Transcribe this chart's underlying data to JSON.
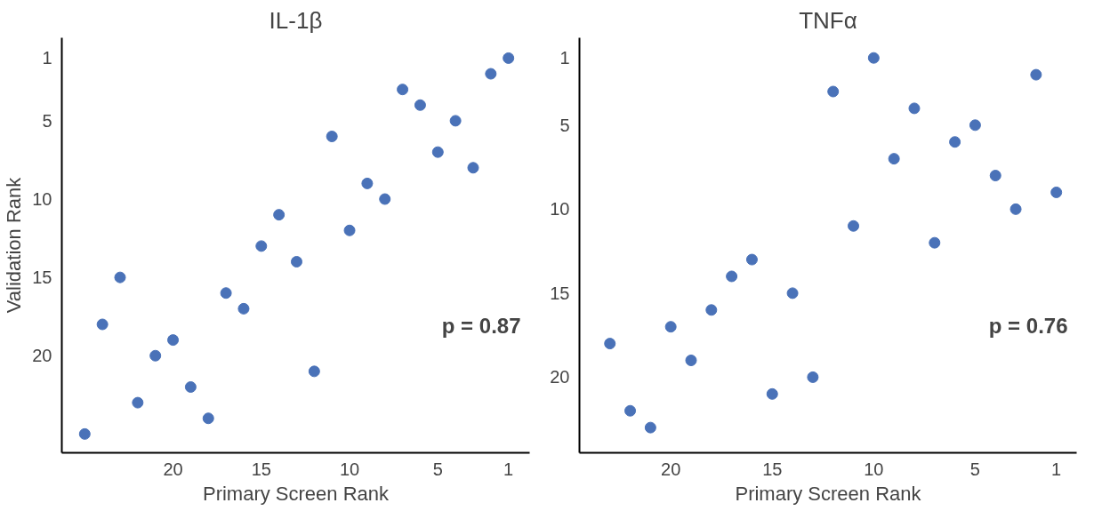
{
  "chart_data": [
    {
      "type": "scatter",
      "title": "IL-1β",
      "xlabel": "Primary Screen Rank",
      "ylabel": "Validation Rank",
      "marker": "circle",
      "grid": false,
      "x": [
        25,
        24,
        23,
        22,
        21,
        20,
        19,
        18,
        17,
        16,
        15,
        14,
        13,
        12,
        11,
        10,
        9,
        8,
        7,
        6,
        5,
        4,
        3,
        2,
        1
      ],
      "series": [
        {
          "color": "#4a72b8",
          "values": [
            25,
            18,
            15,
            23,
            20,
            19,
            22,
            24,
            16,
            17,
            13,
            11,
            14,
            21,
            6,
            12,
            9,
            10,
            3,
            4,
            7,
            5,
            8,
            2,
            1
          ]
        }
      ],
      "xlim": [
        26.3,
        -0.2
      ],
      "ylim": [
        26.2,
        -0.3
      ],
      "xticks": [
        20,
        15,
        10,
        5,
        1
      ],
      "yticks": [
        1,
        5,
        10,
        15,
        20
      ],
      "annotations": [
        "p = 0.87"
      ]
    },
    {
      "type": "scatter",
      "title": "TNFα",
      "xlabel": "Primary Screen Rank",
      "marker": "circle",
      "grid": false,
      "x": [
        23,
        22,
        21,
        20,
        19,
        18,
        17,
        16,
        15,
        14,
        13,
        12,
        11,
        10,
        9,
        8,
        7,
        6,
        5,
        4,
        3,
        2,
        1
      ],
      "series": [
        {
          "color": "#4a72b8",
          "values": [
            18,
            22,
            23,
            17,
            19,
            16,
            14,
            13,
            21,
            15,
            20,
            3,
            11,
            1,
            7,
            4,
            12,
            6,
            5,
            8,
            10,
            2,
            9
          ]
        }
      ],
      "xlim": [
        24.5,
        0
      ],
      "ylim": [
        24.5,
        -0.2
      ],
      "xticks": [
        20,
        15,
        10,
        5,
        1
      ],
      "yticks": [
        1,
        5,
        10,
        15,
        20
      ],
      "annotations": [
        "p = 0.76"
      ]
    }
  ]
}
